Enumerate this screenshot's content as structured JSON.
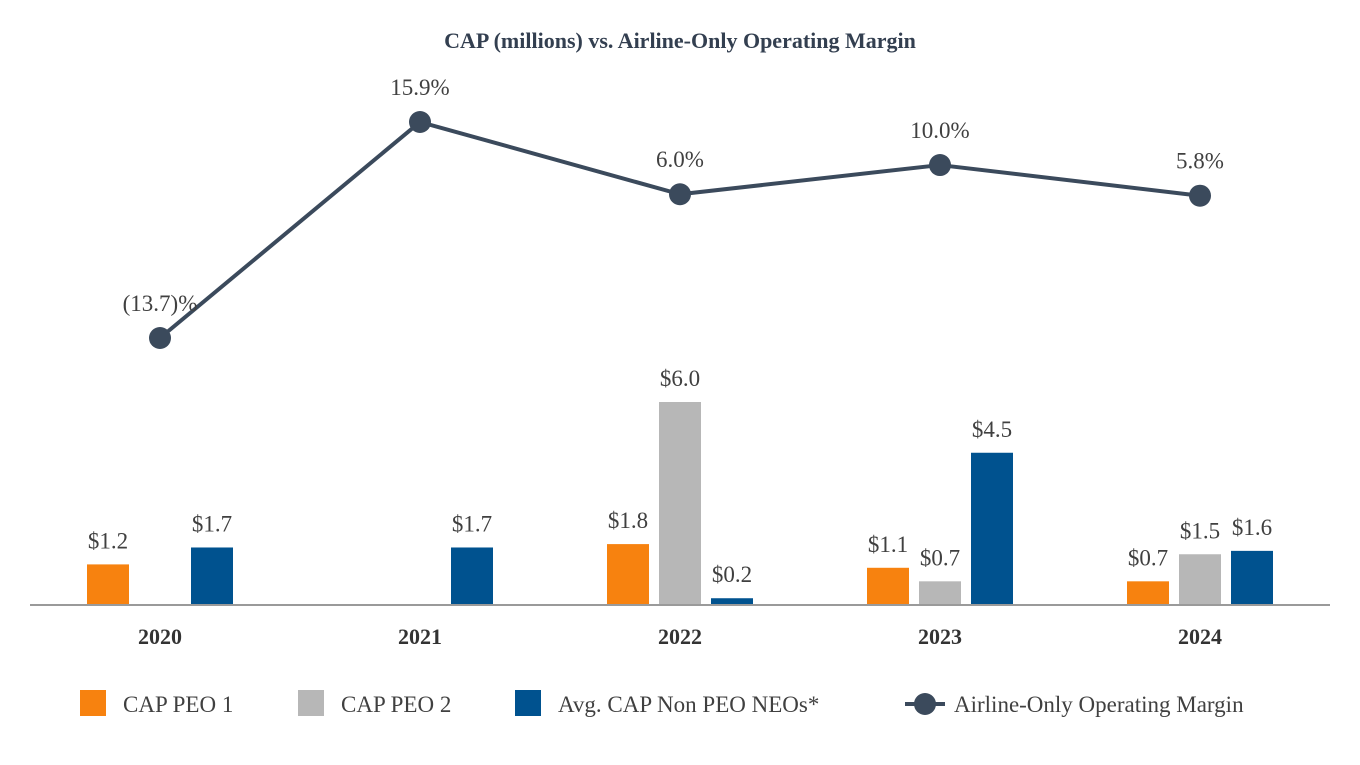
{
  "chart_data": {
    "type": "bar+line",
    "title": "CAP (millions) vs. Airline-Only Operating Margin",
    "categories": [
      "2020",
      "2021",
      "2022",
      "2023",
      "2024"
    ],
    "bar_series": [
      {
        "name": "CAP PEO 1",
        "color": "#f7820f",
        "values": [
          1.2,
          null,
          1.8,
          1.1,
          0.7
        ],
        "labels": [
          "$1.2",
          "",
          "$1.8",
          "$1.1",
          "$0.7"
        ]
      },
      {
        "name": "CAP PEO 2",
        "color": "#b7b7b7",
        "values": [
          null,
          null,
          6.0,
          0.7,
          1.5
        ],
        "labels": [
          "",
          "",
          "$6.0",
          "$0.7",
          "$1.5"
        ]
      },
      {
        "name": "Avg. CAP Non PEO NEOs*",
        "color": "#00528f",
        "values": [
          1.7,
          1.7,
          0.2,
          4.5,
          1.6
        ],
        "labels": [
          "$1.7",
          "$1.7",
          "$0.2",
          "$4.5",
          "$1.6"
        ]
      }
    ],
    "line_series": {
      "name": "Airline-Only Operating Margin",
      "color": "#3b4a5c",
      "values": [
        -13.7,
        15.9,
        6.0,
        10.0,
        5.8
      ],
      "labels": [
        "(13.7)%",
        "15.9%",
        "6.0%",
        "10.0%",
        "5.8%"
      ]
    },
    "bar_ylim": [
      0,
      6.0
    ],
    "line_ylim": [
      -13.7,
      15.9
    ],
    "legend_position": "bottom"
  }
}
